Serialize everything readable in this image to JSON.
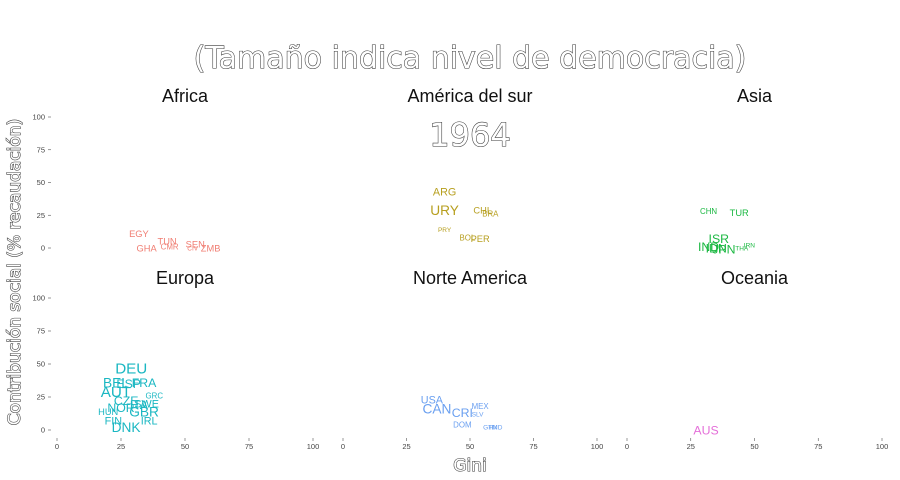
{
  "chart_data": {
    "type": "scatter",
    "title": "(Tamaño indica nivel de democracia)",
    "frame_label": "1964",
    "xlabel": "Gini",
    "ylabel": "Contribución social (% recaudación)",
    "xlim": [
      0,
      100
    ],
    "ylim": [
      -5,
      105
    ],
    "x_ticks": [
      0,
      25,
      50,
      75,
      100
    ],
    "y_ticks": [
      0,
      25,
      50,
      75,
      100
    ],
    "grid": false,
    "colors": {
      "Africa": "#f07d72",
      "América del sur": "#b79f1f",
      "Asia": "#1bb842",
      "Europa": "#1ab7c2",
      "Norte America": "#699ff0",
      "Oceania": "#e46fd9"
    },
    "facets": [
      {
        "name": "Africa",
        "points": [
          {
            "label": "EGY",
            "x": 32,
            "y": 11,
            "size": 3
          },
          {
            "label": "GHA",
            "x": 35,
            "y": 0,
            "size": 3
          },
          {
            "label": "TUN",
            "x": 43,
            "y": 5,
            "size": 3
          },
          {
            "label": "CMR",
            "x": 44,
            "y": 1,
            "size": 2
          },
          {
            "label": "SEN",
            "x": 54,
            "y": 3,
            "size": 3
          },
          {
            "label": "CIV",
            "x": 53,
            "y": 0,
            "size": 1
          },
          {
            "label": "ZMB",
            "x": 60,
            "y": 0,
            "size": 3
          }
        ]
      },
      {
        "name": "América del sur",
        "points": [
          {
            "label": "ARG",
            "x": 40,
            "y": 43,
            "size": 4
          },
          {
            "label": "URY",
            "x": 40,
            "y": 29,
            "size": 6
          },
          {
            "label": "CHL",
            "x": 55,
            "y": 29,
            "size": 3
          },
          {
            "label": "BRA",
            "x": 58,
            "y": 26,
            "size": 2
          },
          {
            "label": "PRY",
            "x": 40,
            "y": 14,
            "size": 1
          },
          {
            "label": "BOL",
            "x": 49,
            "y": 8,
            "size": 2
          },
          {
            "label": "PER",
            "x": 54,
            "y": 7,
            "size": 3
          }
        ]
      },
      {
        "name": "Asia",
        "points": [
          {
            "label": "CHN",
            "x": 32,
            "y": 28,
            "size": 2
          },
          {
            "label": "TUR",
            "x": 44,
            "y": 27,
            "size": 3
          },
          {
            "label": "ISR",
            "x": 36,
            "y": 7,
            "size": 5
          },
          {
            "label": "IND",
            "x": 32,
            "y": 1,
            "size": 5
          },
          {
            "label": "IDN",
            "x": 35,
            "y": 0,
            "size": 5
          },
          {
            "label": "JPN",
            "x": 38,
            "y": -1,
            "size": 5
          },
          {
            "label": "IRN",
            "x": 48,
            "y": 2,
            "size": 1
          },
          {
            "label": "THA",
            "x": 45,
            "y": 0,
            "size": 1
          }
        ]
      },
      {
        "name": "Europa",
        "points": [
          {
            "label": "DEU",
            "x": 29,
            "y": 47,
            "size": 7
          },
          {
            "label": "BEL",
            "x": 23,
            "y": 36,
            "size": 6
          },
          {
            "label": "ESP",
            "x": 28,
            "y": 35,
            "size": 5
          },
          {
            "label": "FRA",
            "x": 34,
            "y": 36,
            "size": 5
          },
          {
            "label": "AUT",
            "x": 23,
            "y": 29,
            "size": 7
          },
          {
            "label": "CZE",
            "x": 27,
            "y": 22,
            "size": 5
          },
          {
            "label": "GRC",
            "x": 38,
            "y": 26,
            "size": 2
          },
          {
            "label": "NOR",
            "x": 25,
            "y": 17,
            "size": 5
          },
          {
            "label": "ITA",
            "x": 32,
            "y": 19,
            "size": 5
          },
          {
            "label": "SWE",
            "x": 35,
            "y": 20,
            "size": 4
          },
          {
            "label": "HUN",
            "x": 20,
            "y": 14,
            "size": 3
          },
          {
            "label": "GBR",
            "x": 34,
            "y": 14,
            "size": 6
          },
          {
            "label": "FIN",
            "x": 22,
            "y": 7,
            "size": 4
          },
          {
            "label": "IRL",
            "x": 36,
            "y": 7,
            "size": 4
          },
          {
            "label": "DNK",
            "x": 27,
            "y": 2,
            "size": 6
          }
        ]
      },
      {
        "name": "Norte America",
        "points": [
          {
            "label": "USA",
            "x": 35,
            "y": 23,
            "size": 4
          },
          {
            "label": "CAN",
            "x": 37,
            "y": 16,
            "size": 6
          },
          {
            "label": "CRI",
            "x": 47,
            "y": 13,
            "size": 5
          },
          {
            "label": "MEX",
            "x": 54,
            "y": 18,
            "size": 2
          },
          {
            "label": "SLV",
            "x": 53,
            "y": 12,
            "size": 1
          },
          {
            "label": "DOM",
            "x": 47,
            "y": 4,
            "size": 2
          },
          {
            "label": "GTM",
            "x": 58,
            "y": 2,
            "size": 1
          },
          {
            "label": "HND",
            "x": 60,
            "y": 2,
            "size": 1
          }
        ]
      },
      {
        "name": "Oceania",
        "points": [
          {
            "label": "AUS",
            "x": 31,
            "y": 0,
            "size": 5
          }
        ]
      }
    ]
  }
}
